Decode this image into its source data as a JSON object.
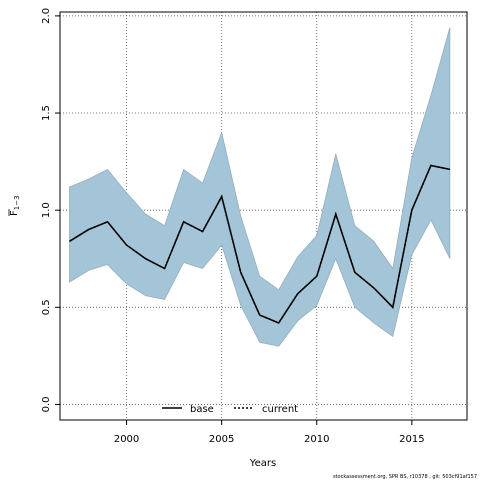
{
  "chart_data": {
    "type": "line",
    "xlabel": "Years",
    "ylabel": "F",
    "ylabel_sub": "1−3",
    "xlim": [
      1996.5,
      2017.9
    ],
    "ylim": [
      -0.08,
      2.02
    ],
    "x_ticks": [
      2000,
      2005,
      2010,
      2015
    ],
    "y_ticks": [
      0.0,
      0.5,
      1.0,
      1.5,
      2.0
    ],
    "y_tick_labels": [
      "0.0",
      "0.5",
      "1.0",
      "1.5",
      "2.0"
    ],
    "grid": true,
    "legend_position": "bottom",
    "x": [
      1997,
      1998,
      1999,
      2000,
      2001,
      2002,
      2003,
      2004,
      2005,
      2006,
      2007,
      2008,
      2009,
      2010,
      2011,
      2012,
      2013,
      2014,
      2015,
      2016,
      2017
    ],
    "series": [
      {
        "name": "base",
        "style": "solid",
        "color": "#000000",
        "values": [
          0.84,
          0.9,
          0.94,
          0.82,
          0.75,
          0.7,
          0.94,
          0.89,
          1.07,
          0.68,
          0.46,
          0.42,
          0.57,
          0.66,
          0.98,
          0.68,
          0.6,
          0.5,
          1.0,
          1.23,
          1.21
        ]
      },
      {
        "name": "current",
        "style": "dotted",
        "color": "#000000",
        "values": [
          0.84,
          0.9,
          0.94,
          0.82,
          0.75,
          0.7,
          0.94,
          0.89,
          1.07,
          0.68,
          0.46,
          0.42,
          0.57,
          0.66,
          0.98,
          0.68,
          0.6,
          0.5,
          1.0,
          1.23,
          1.21
        ]
      }
    ],
    "band": {
      "color": "#a3c5d7",
      "lower": [
        0.63,
        0.69,
        0.72,
        0.62,
        0.56,
        0.54,
        0.73,
        0.7,
        0.82,
        0.51,
        0.32,
        0.3,
        0.43,
        0.51,
        0.75,
        0.5,
        0.42,
        0.35,
        0.77,
        0.95,
        0.75
      ],
      "upper": [
        1.12,
        1.16,
        1.21,
        1.09,
        0.98,
        0.92,
        1.21,
        1.14,
        1.4,
        0.97,
        0.66,
        0.59,
        0.76,
        0.87,
        1.29,
        0.92,
        0.84,
        0.7,
        1.27,
        1.59,
        1.94
      ]
    }
  },
  "footer_text": "stockassessment.org, SPR BS, r10378 , git: 503cf91af157"
}
